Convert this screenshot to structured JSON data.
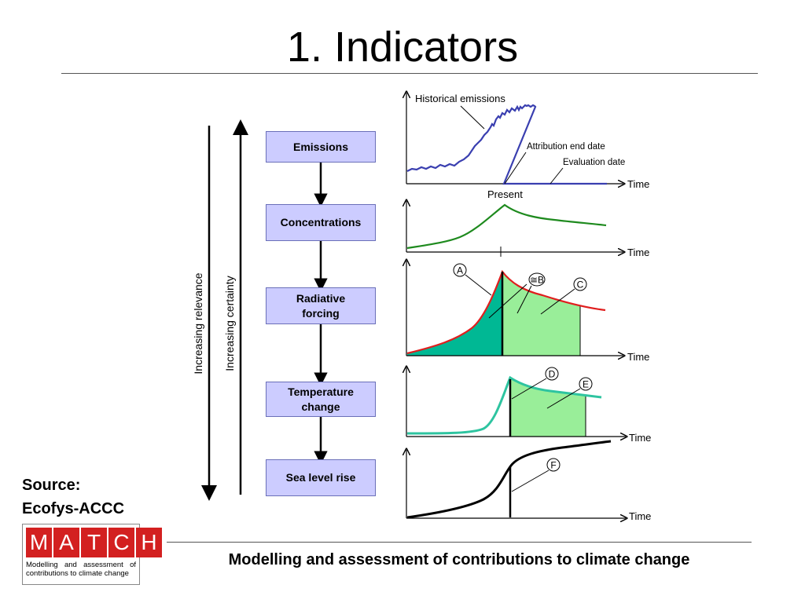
{
  "slide": {
    "title": "1. Indicators",
    "source_line1": "Source:",
    "source_line2": "Ecofys-ACCC",
    "footer": "Modelling and assessment of contributions to climate change"
  },
  "logo": {
    "letters": [
      "M",
      "A",
      "T",
      "C",
      "H"
    ],
    "subtitle": "Modelling and assessment of contributions to climate change",
    "color": "#d32020"
  },
  "chain": {
    "boxes": [
      {
        "label": "Emissions"
      },
      {
        "label": "Concentrations"
      },
      {
        "label": "Radiative forcing"
      },
      {
        "label": "Temperature change"
      },
      {
        "label": "Sea level rise"
      }
    ],
    "box_fill": "#ccccff",
    "box_border": "#6a6fb8"
  },
  "side_axes": {
    "relevance": "Increasing relevance",
    "certainty": "Increasing certainty"
  },
  "graphs": {
    "time_label": "Time",
    "emissions": {
      "historical_label": "Historical emissions",
      "attribution_label": "Attribution end date",
      "evaluation_label": "Evaluation date",
      "present_label": "Present",
      "line_color": "#3a3fb0"
    },
    "concentrations": {
      "line_color": "#1e8a1e"
    },
    "forcing": {
      "line_color": "#e01e1e",
      "fill_dark": "#00b894",
      "fill_light": "#99ee99",
      "labels": [
        "A",
        "≅B",
        "C"
      ]
    },
    "temperature": {
      "line_color": "#2ec4a0",
      "fill_light": "#99ee99",
      "labels": [
        "D",
        "E"
      ]
    },
    "sea_level": {
      "line_color": "#000000",
      "labels": [
        "F"
      ]
    }
  }
}
